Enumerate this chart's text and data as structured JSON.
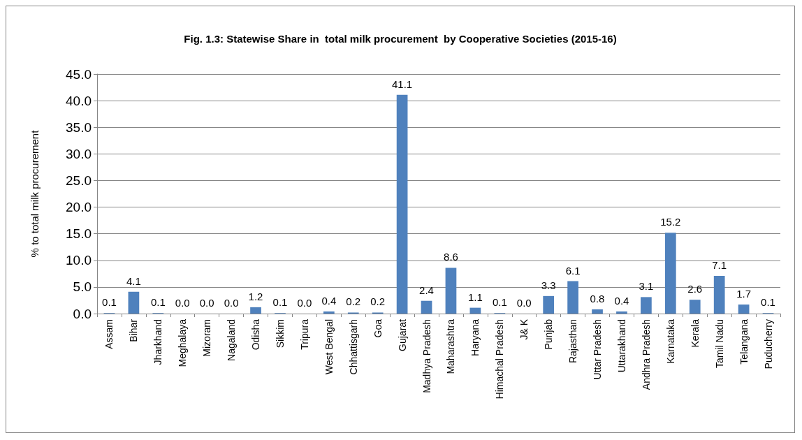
{
  "chart_data": {
    "type": "bar",
    "title": "Fig. 1.3: Statewise Share in  total milk procurement  by Cooperative Societies (2015-16)",
    "ylabel": "% to total milk procurement",
    "categories": [
      "Assam",
      "Bihar",
      "Jharkhand",
      "Meghalaya",
      "Mizoram",
      "Nagaland",
      "Odisha",
      "Sikkim",
      "Tripura",
      "West Bengal",
      "Chhattisgarh",
      "Goa",
      "Gujarat",
      "Madhya Pradesh",
      "Maharashtra",
      "Haryana",
      "Himachal Pradesh",
      "J& K",
      "Punjab",
      "Rajasthan",
      "Uttar Pradesh",
      "Uttarakhand",
      "Andhra Pradesh",
      "Karnataka",
      "Kerala",
      "Tamil Nadu",
      "Telangana",
      "Puducherry"
    ],
    "values": [
      0.1,
      4.1,
      0.1,
      0.0,
      0.0,
      0.0,
      1.2,
      0.1,
      0.0,
      0.4,
      0.2,
      0.2,
      41.1,
      2.4,
      8.6,
      1.1,
      0.1,
      0.0,
      3.3,
      6.1,
      0.8,
      0.4,
      3.1,
      15.2,
      2.6,
      7.1,
      1.7,
      0.1
    ],
    "value_labels": [
      "0.1",
      "4.1",
      "0.1",
      "0.0",
      "0.0",
      "0.0",
      "1.2",
      "0.1",
      "0.0",
      "0.4",
      "0.2",
      "0.2",
      "41.1",
      "2.4",
      "8.6",
      "1.1",
      "0.1",
      "0.0",
      "3.3",
      "6.1",
      "0.8",
      "0.4",
      "3.1",
      "15.2",
      "2.6",
      "7.1",
      "1.7",
      "0.1"
    ],
    "color": "#4f81bd",
    "ylim": [
      0,
      45
    ],
    "yticks": [
      {
        "value": 0,
        "label": "0.0"
      },
      {
        "value": 5,
        "label": "5.0"
      },
      {
        "value": 10,
        "label": "10.0"
      },
      {
        "value": 15,
        "label": "15.0"
      },
      {
        "value": 20,
        "label": "20.0"
      },
      {
        "value": 25,
        "label": "25.0"
      },
      {
        "value": 30,
        "label": "30.0"
      },
      {
        "value": 35,
        "label": "35.0"
      },
      {
        "value": 40,
        "label": "40.0"
      },
      {
        "value": 45,
        "label": "45.0"
      }
    ],
    "grid": "y"
  }
}
